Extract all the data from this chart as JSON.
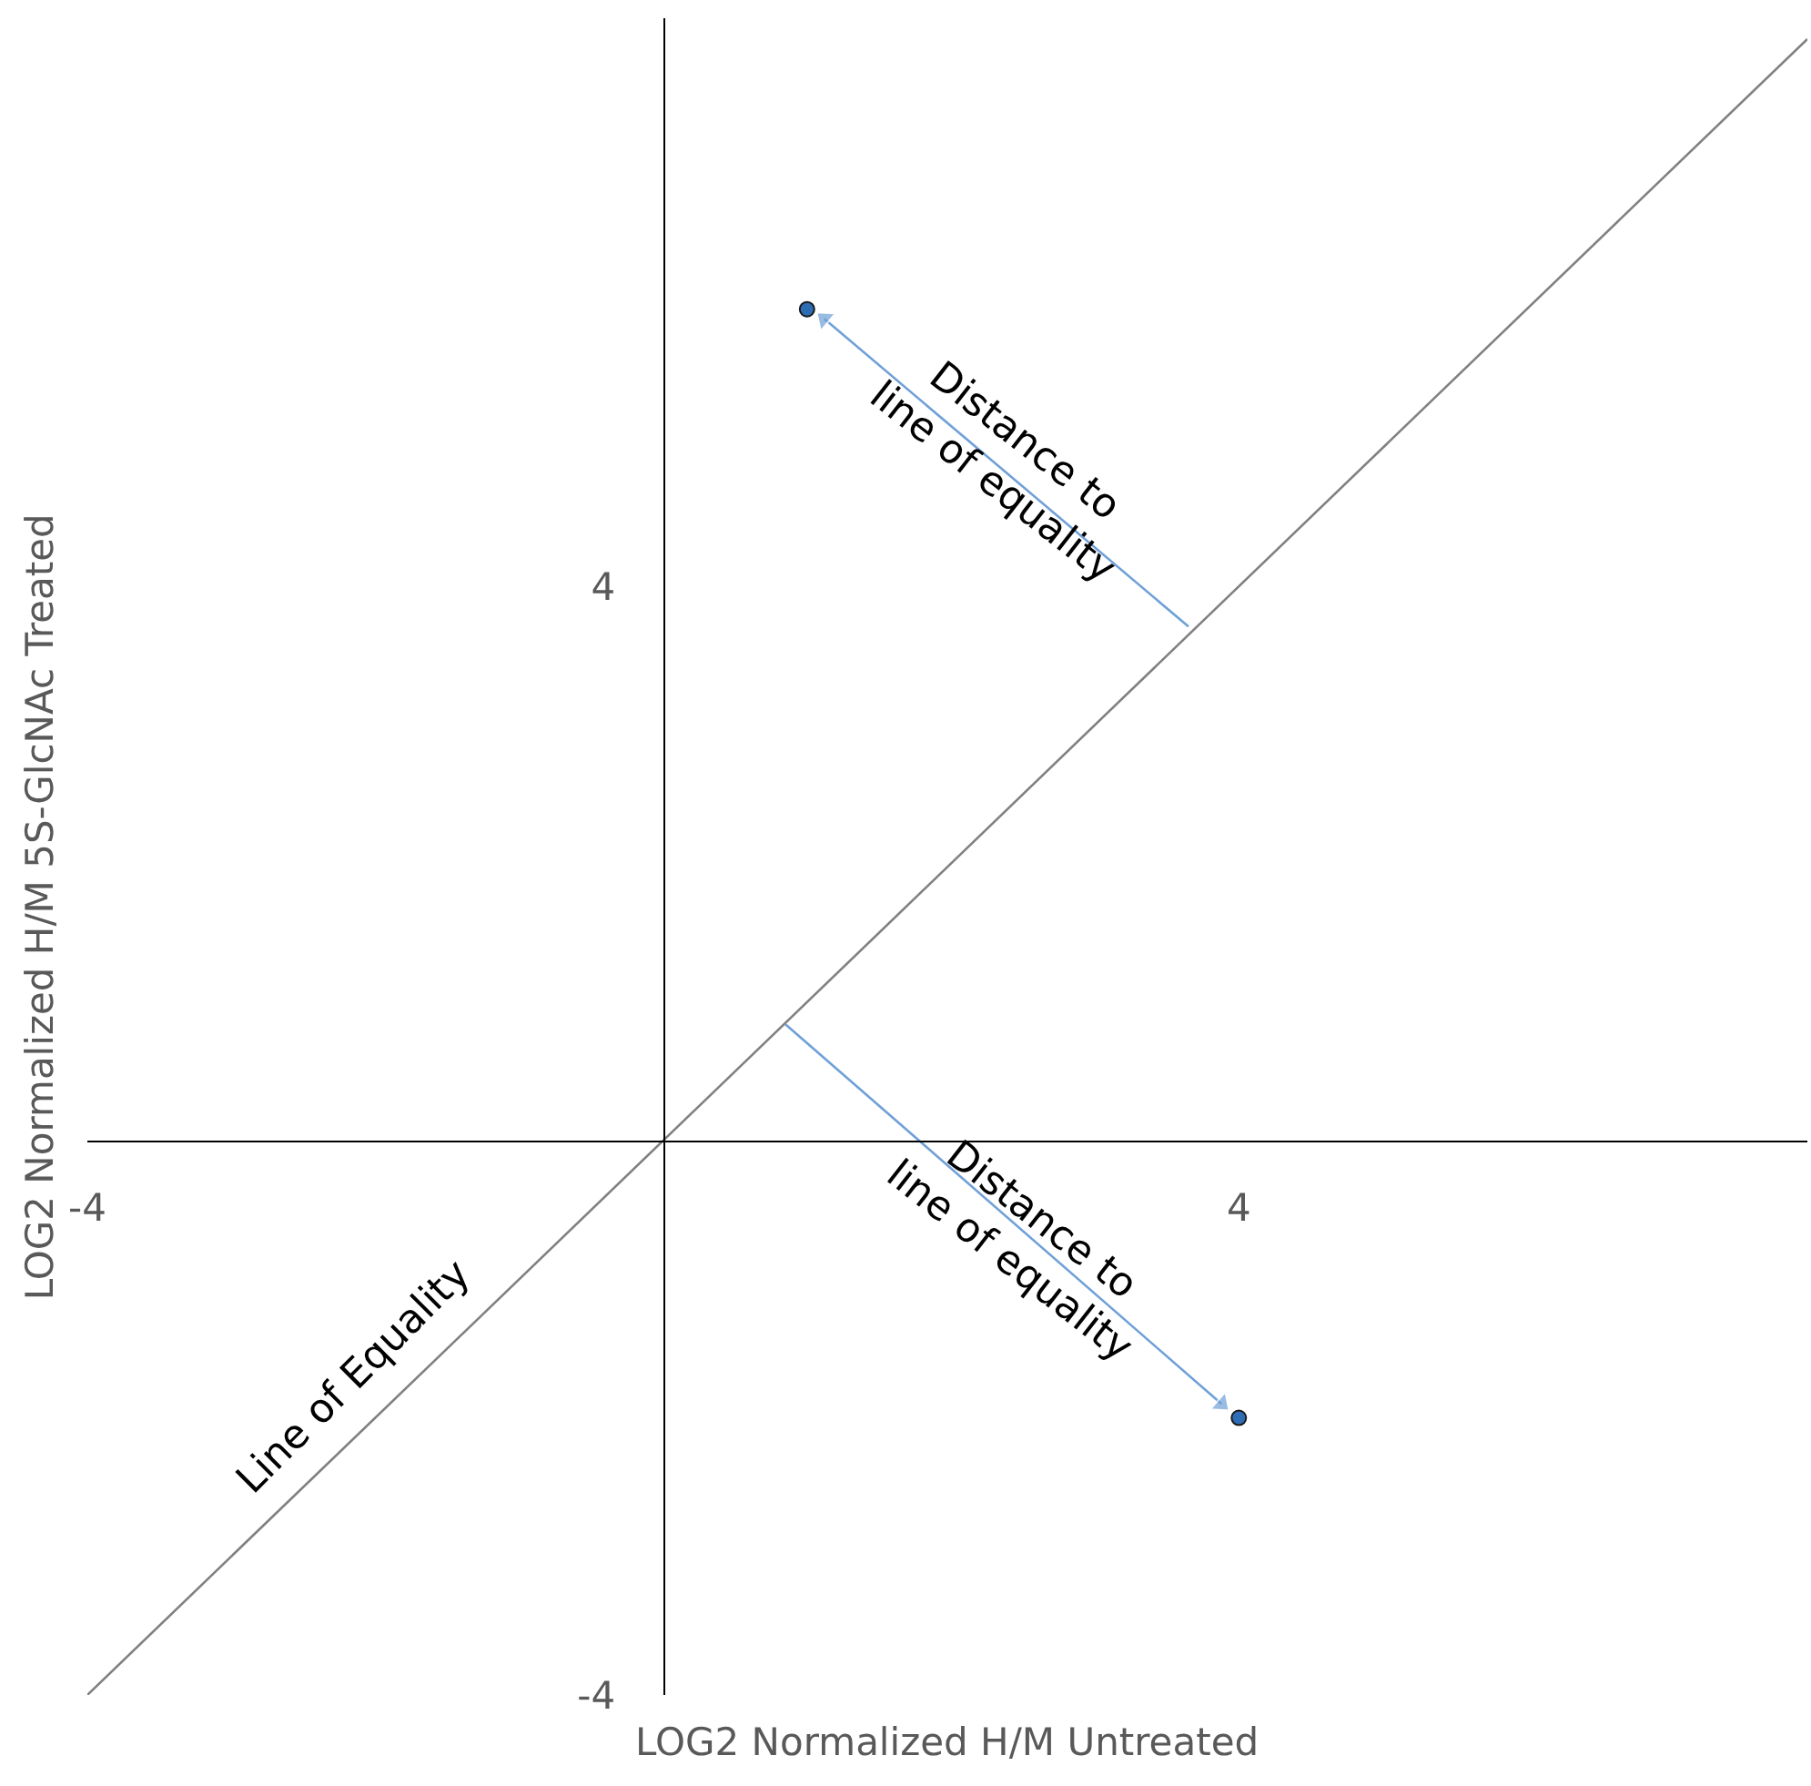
{
  "chart_data": {
    "type": "scatter",
    "xlabel": "LOG2 Normalized H/M Untreated",
    "ylabel": "LOG2 Normalized H/M 5S-GlcNAc Treated",
    "xlim": [
      -4,
      7.95
    ],
    "ylim": [
      -4,
      8.1
    ],
    "xticks": [
      -4,
      4
    ],
    "yticks": [
      -4,
      4
    ],
    "series": [
      {
        "type": "line",
        "color": "#808080",
        "x": [
          -4,
          7.95
        ],
        "values": [
          -4,
          7.95
        ],
        "marker": "none"
      },
      {
        "type": "line",
        "color": "#6fa0d8",
        "x": [
          3.65,
          1.12
        ],
        "values": [
          3.71,
          5.93
        ],
        "marker": "triangle"
      },
      {
        "type": "line",
        "color": "#6fa0d8",
        "x": [
          0.85,
          3.88
        ],
        "values": [
          0.84,
          -1.9
        ],
        "marker": "triangle"
      },
      {
        "color": "#2e6db4",
        "x": [
          1.0,
          4.0
        ],
        "values": [
          6.0,
          -2.0
        ],
        "marker": "circle"
      }
    ],
    "annotations": [
      "Distance to\nline of equality",
      "Distance to\nline of equality",
      "Line of Equality"
    ]
  }
}
